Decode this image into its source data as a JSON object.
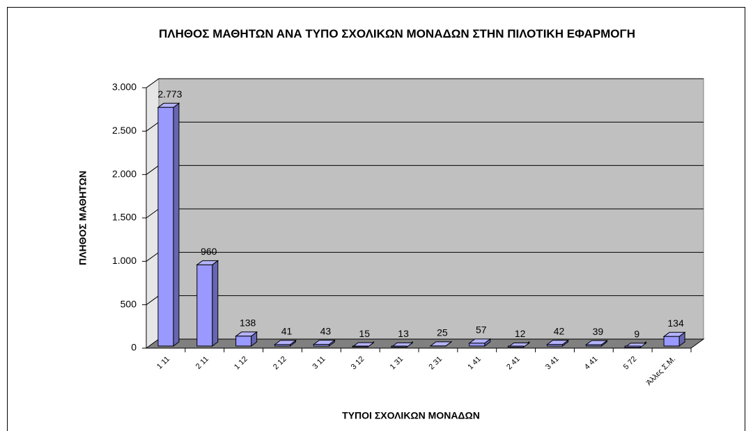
{
  "chart_data": {
    "type": "bar3d",
    "title": "ΠΛΗΘΟΣ ΜΑΘΗΤΩΝ ΑΝΑ ΤΥΠΟ ΣΧΟΛΙΚΩΝ  ΜΟΝΑΔΩΝ ΣΤΗΝ ΠΙΛΟΤΙΚΗ ΕΦΑΡΜΟΓΗ",
    "x_label": "ΤΥΠΟΙ ΣΧΟΛΙΚΩΝ ΜΟΝΑΔΩΝ",
    "y_label": "ΠΛΗΘΟΣ ΜΑΘΗΤΩΝ",
    "categories": [
      "1 11",
      "2 11",
      "1 12",
      "2 12",
      "3 11",
      "3 12",
      "1 31",
      "2 31",
      "1 41",
      "2 41",
      "3 41",
      "4 41",
      "5 72",
      "Άλλες Σ.Μ."
    ],
    "values": [
      2773,
      960,
      138,
      41,
      43,
      15,
      13,
      25,
      57,
      12,
      42,
      39,
      9,
      134
    ],
    "value_labels": [
      "2.773",
      "960",
      "138",
      "41",
      "43",
      "15",
      "13",
      "25",
      "57",
      "12",
      "42",
      "39",
      "9",
      "134"
    ],
    "color": "#9999ff",
    "ylim": [
      0,
      3000
    ],
    "yticks": [
      0,
      500,
      {
        "value": 1000,
        "label": "1.000"
      },
      {
        "value": 1500,
        "label": "1.500"
      },
      {
        "value": 2000,
        "label": "2.000"
      },
      {
        "value": 2500,
        "label": "2.500"
      },
      {
        "value": 3000,
        "label": "3.000"
      }
    ],
    "grid": true
  }
}
